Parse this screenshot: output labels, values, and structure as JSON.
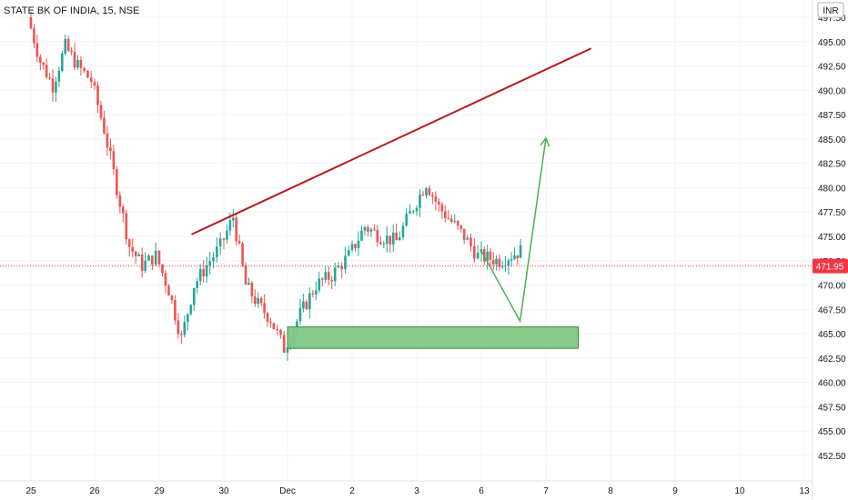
{
  "header": {
    "symbol_title": "STATE BK OF INDIA, 15, NSE",
    "currency": "INR"
  },
  "price_badge": {
    "label": "471.95",
    "color": "#f23645"
  },
  "colors": {
    "up": "#26a69a",
    "down": "#ef5350",
    "trendline": "#b71c1c",
    "arrow": "#4caf50",
    "zone_fill": "#81c784",
    "zone_border": "#388e3c",
    "current_price_line": "#f23645",
    "grid": "#f0f3fa"
  },
  "chart_data": {
    "type": "candlestick",
    "title": "STATE BK OF INDIA, 15, NSE",
    "ylim": [
      451.5,
      498.2
    ],
    "y_ticks": [
      "452.50",
      "455.00",
      "457.50",
      "460.00",
      "462.50",
      "465.00",
      "467.50",
      "470.00",
      "472.50",
      "475.00",
      "477.50",
      "480.00",
      "482.50",
      "485.00",
      "487.50",
      "490.00",
      "492.50",
      "495.00",
      "497.50"
    ],
    "x_ticks": [
      "25",
      "26",
      "29",
      "30",
      "Dec",
      "2",
      "3",
      "6",
      "7",
      "8",
      "9",
      "10",
      "13"
    ],
    "grid": true,
    "current_price": 471.95,
    "approx_price_path": [
      [
        "25",
        497.5
      ],
      [
        "25",
        493
      ],
      [
        "25",
        490.5
      ],
      [
        "25",
        494.5
      ],
      [
        "25",
        492.5
      ],
      [
        "26",
        491
      ],
      [
        "26",
        486
      ],
      [
        "26",
        480
      ],
      [
        "26",
        474
      ],
      [
        "26",
        472
      ],
      [
        "29",
        473
      ],
      [
        "29",
        469.5
      ],
      [
        "29",
        464.5
      ],
      [
        "29",
        470
      ],
      [
        "29",
        472
      ],
      [
        "30",
        474
      ],
      [
        "30",
        477
      ],
      [
        "30",
        470
      ],
      [
        "30",
        468
      ],
      [
        "30",
        466.5
      ],
      [
        "Dec",
        463.5
      ],
      [
        "Dec",
        467
      ],
      [
        "Dec",
        470
      ],
      [
        "Dec",
        471
      ],
      [
        "2",
        473
      ],
      [
        "2",
        476
      ],
      [
        "2",
        475
      ],
      [
        "2",
        474.5
      ],
      [
        "3",
        478
      ],
      [
        "3",
        480.5
      ],
      [
        "3",
        478
      ],
      [
        "3",
        476.5
      ],
      [
        "3",
        475
      ],
      [
        "6",
        473
      ],
      [
        "6",
        472.5
      ],
      [
        "6",
        473.5
      ]
    ],
    "annotations": {
      "resistance_line": {
        "from": [
          "29.5",
          475.2
        ],
        "to": [
          "7.7",
          494.3
        ]
      },
      "demand_zone": {
        "x_from": "Dec",
        "x_to": "7.5",
        "y_from": 463.5,
        "y_to": 465.7
      },
      "projection_path": [
        [
          "6",
          473.5
        ],
        [
          "6.6",
          466.3
        ],
        [
          "7",
          485.1
        ]
      ]
    }
  }
}
